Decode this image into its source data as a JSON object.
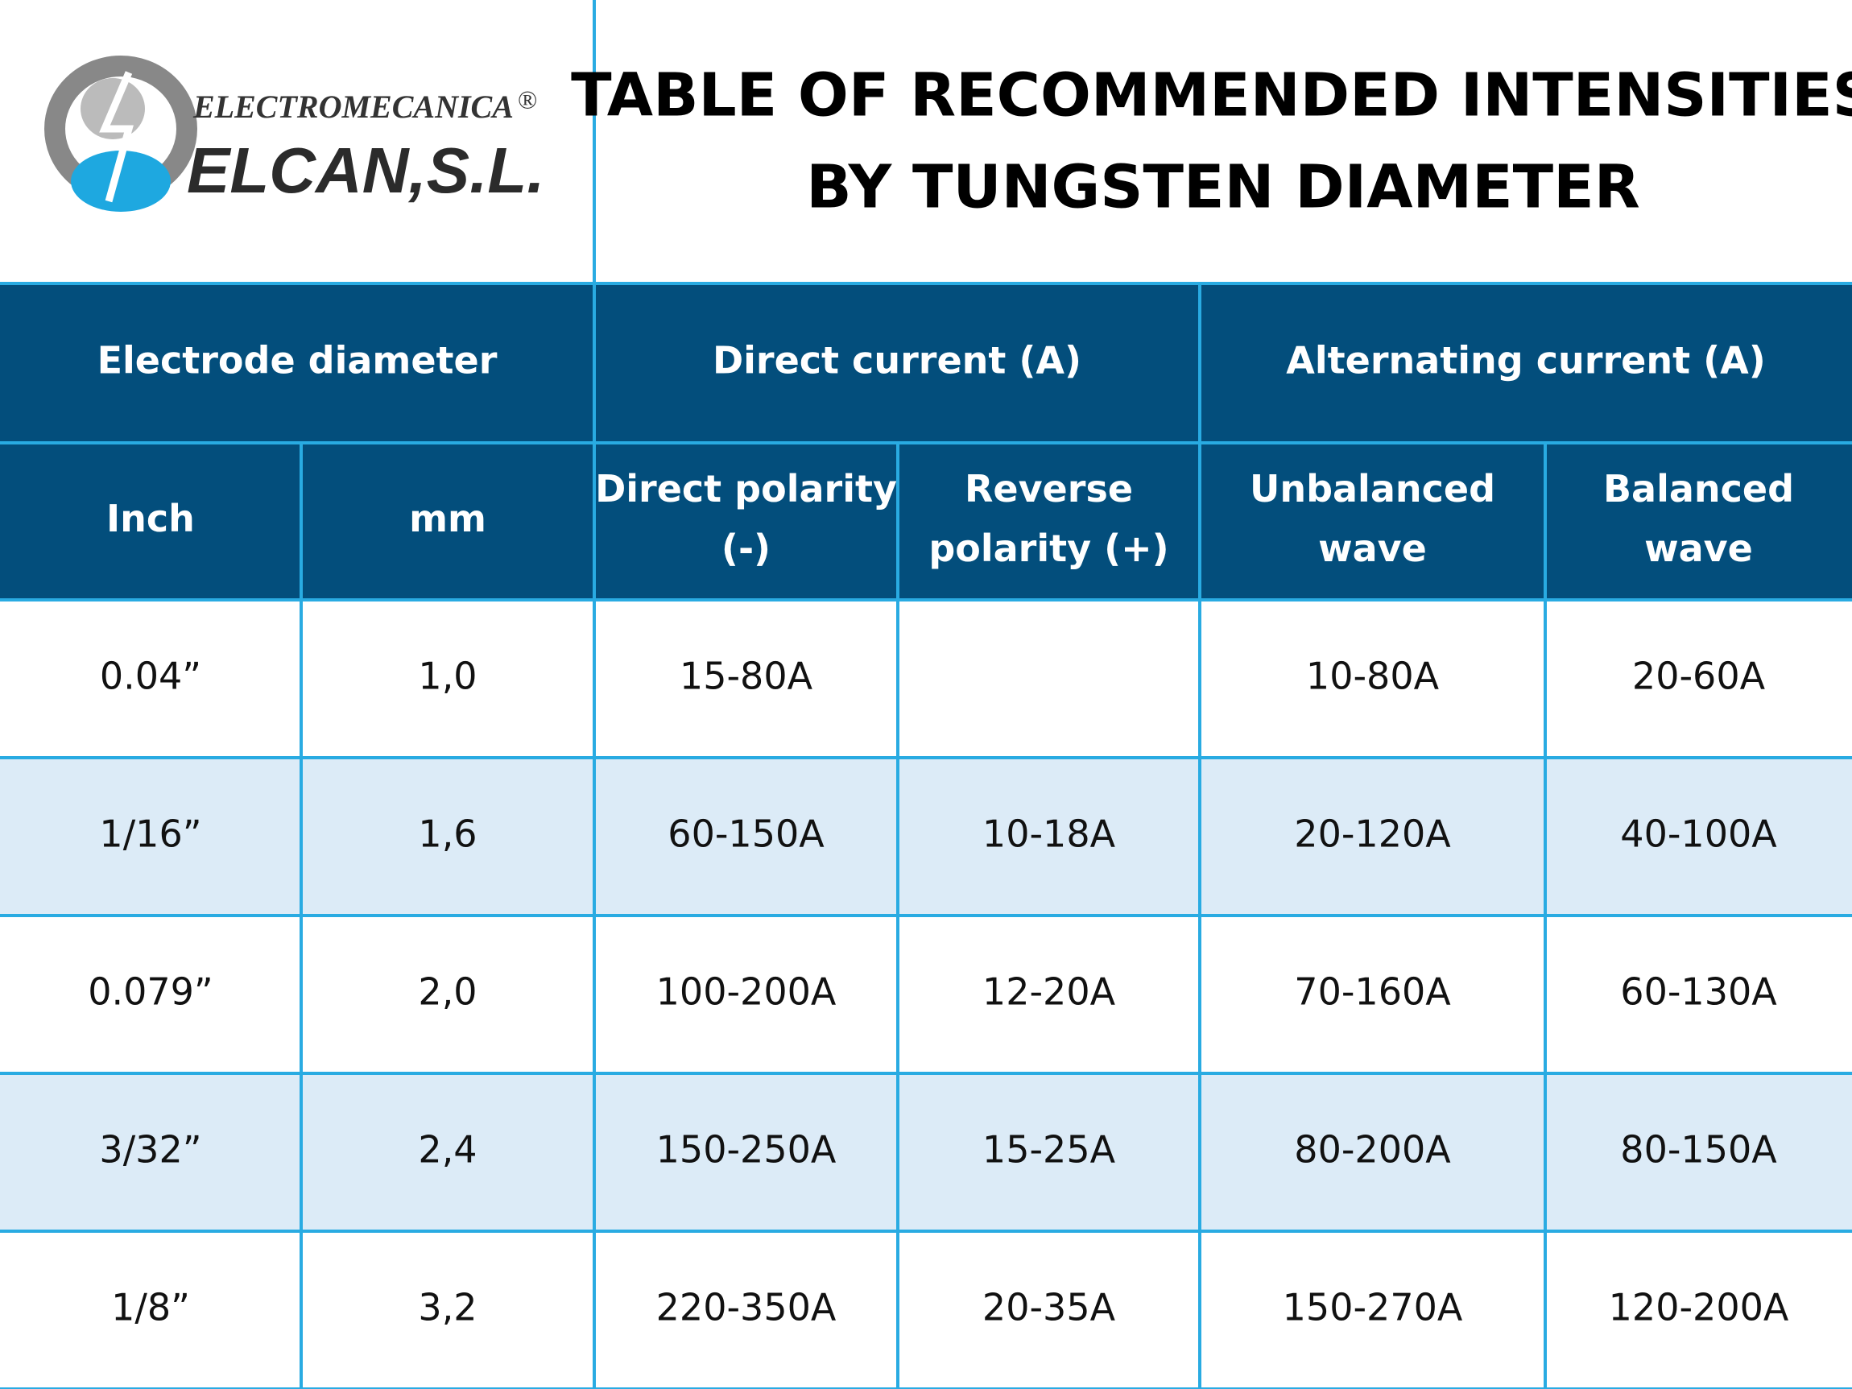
{
  "header": {
    "logo": {
      "brand_top": "ELECTROMECANICA",
      "registered": "®",
      "brand": "ELCAN,S.L."
    },
    "title": [
      "TABLE OF RECOMMENDED INTENSITIES",
      "BY TUNGSTEN DIAMETER"
    ]
  },
  "table": {
    "group_headers": [
      "Electrode diameter",
      "Direct current (A)",
      "Alternating current (A)"
    ],
    "column_headers": [
      [
        "Inch"
      ],
      [
        "mm"
      ],
      [
        "Direct polarity",
        "(-)"
      ],
      [
        "Reverse",
        "polarity (+)"
      ],
      [
        "Unbalanced",
        "wave"
      ],
      [
        "Balanced",
        "wave"
      ]
    ],
    "rows": [
      [
        "0.04”",
        "1,0",
        "15-80A",
        null,
        "10-80A",
        "20-60A"
      ],
      [
        "1/16”",
        "1,6",
        "60-150A",
        "10-18A",
        "20-120A",
        "40-100A"
      ],
      [
        "0.079”",
        "2,0",
        "100-200A",
        "12-20A",
        "70-160A",
        "60-130A"
      ],
      [
        "3/32”",
        "2,4",
        "150-250A",
        "15-25A",
        "80-200A",
        "80-150A"
      ],
      [
        "1/8”",
        "3,2",
        "220-350A",
        "20-35A",
        "150-270A",
        "120-200A"
      ]
    ]
  }
}
